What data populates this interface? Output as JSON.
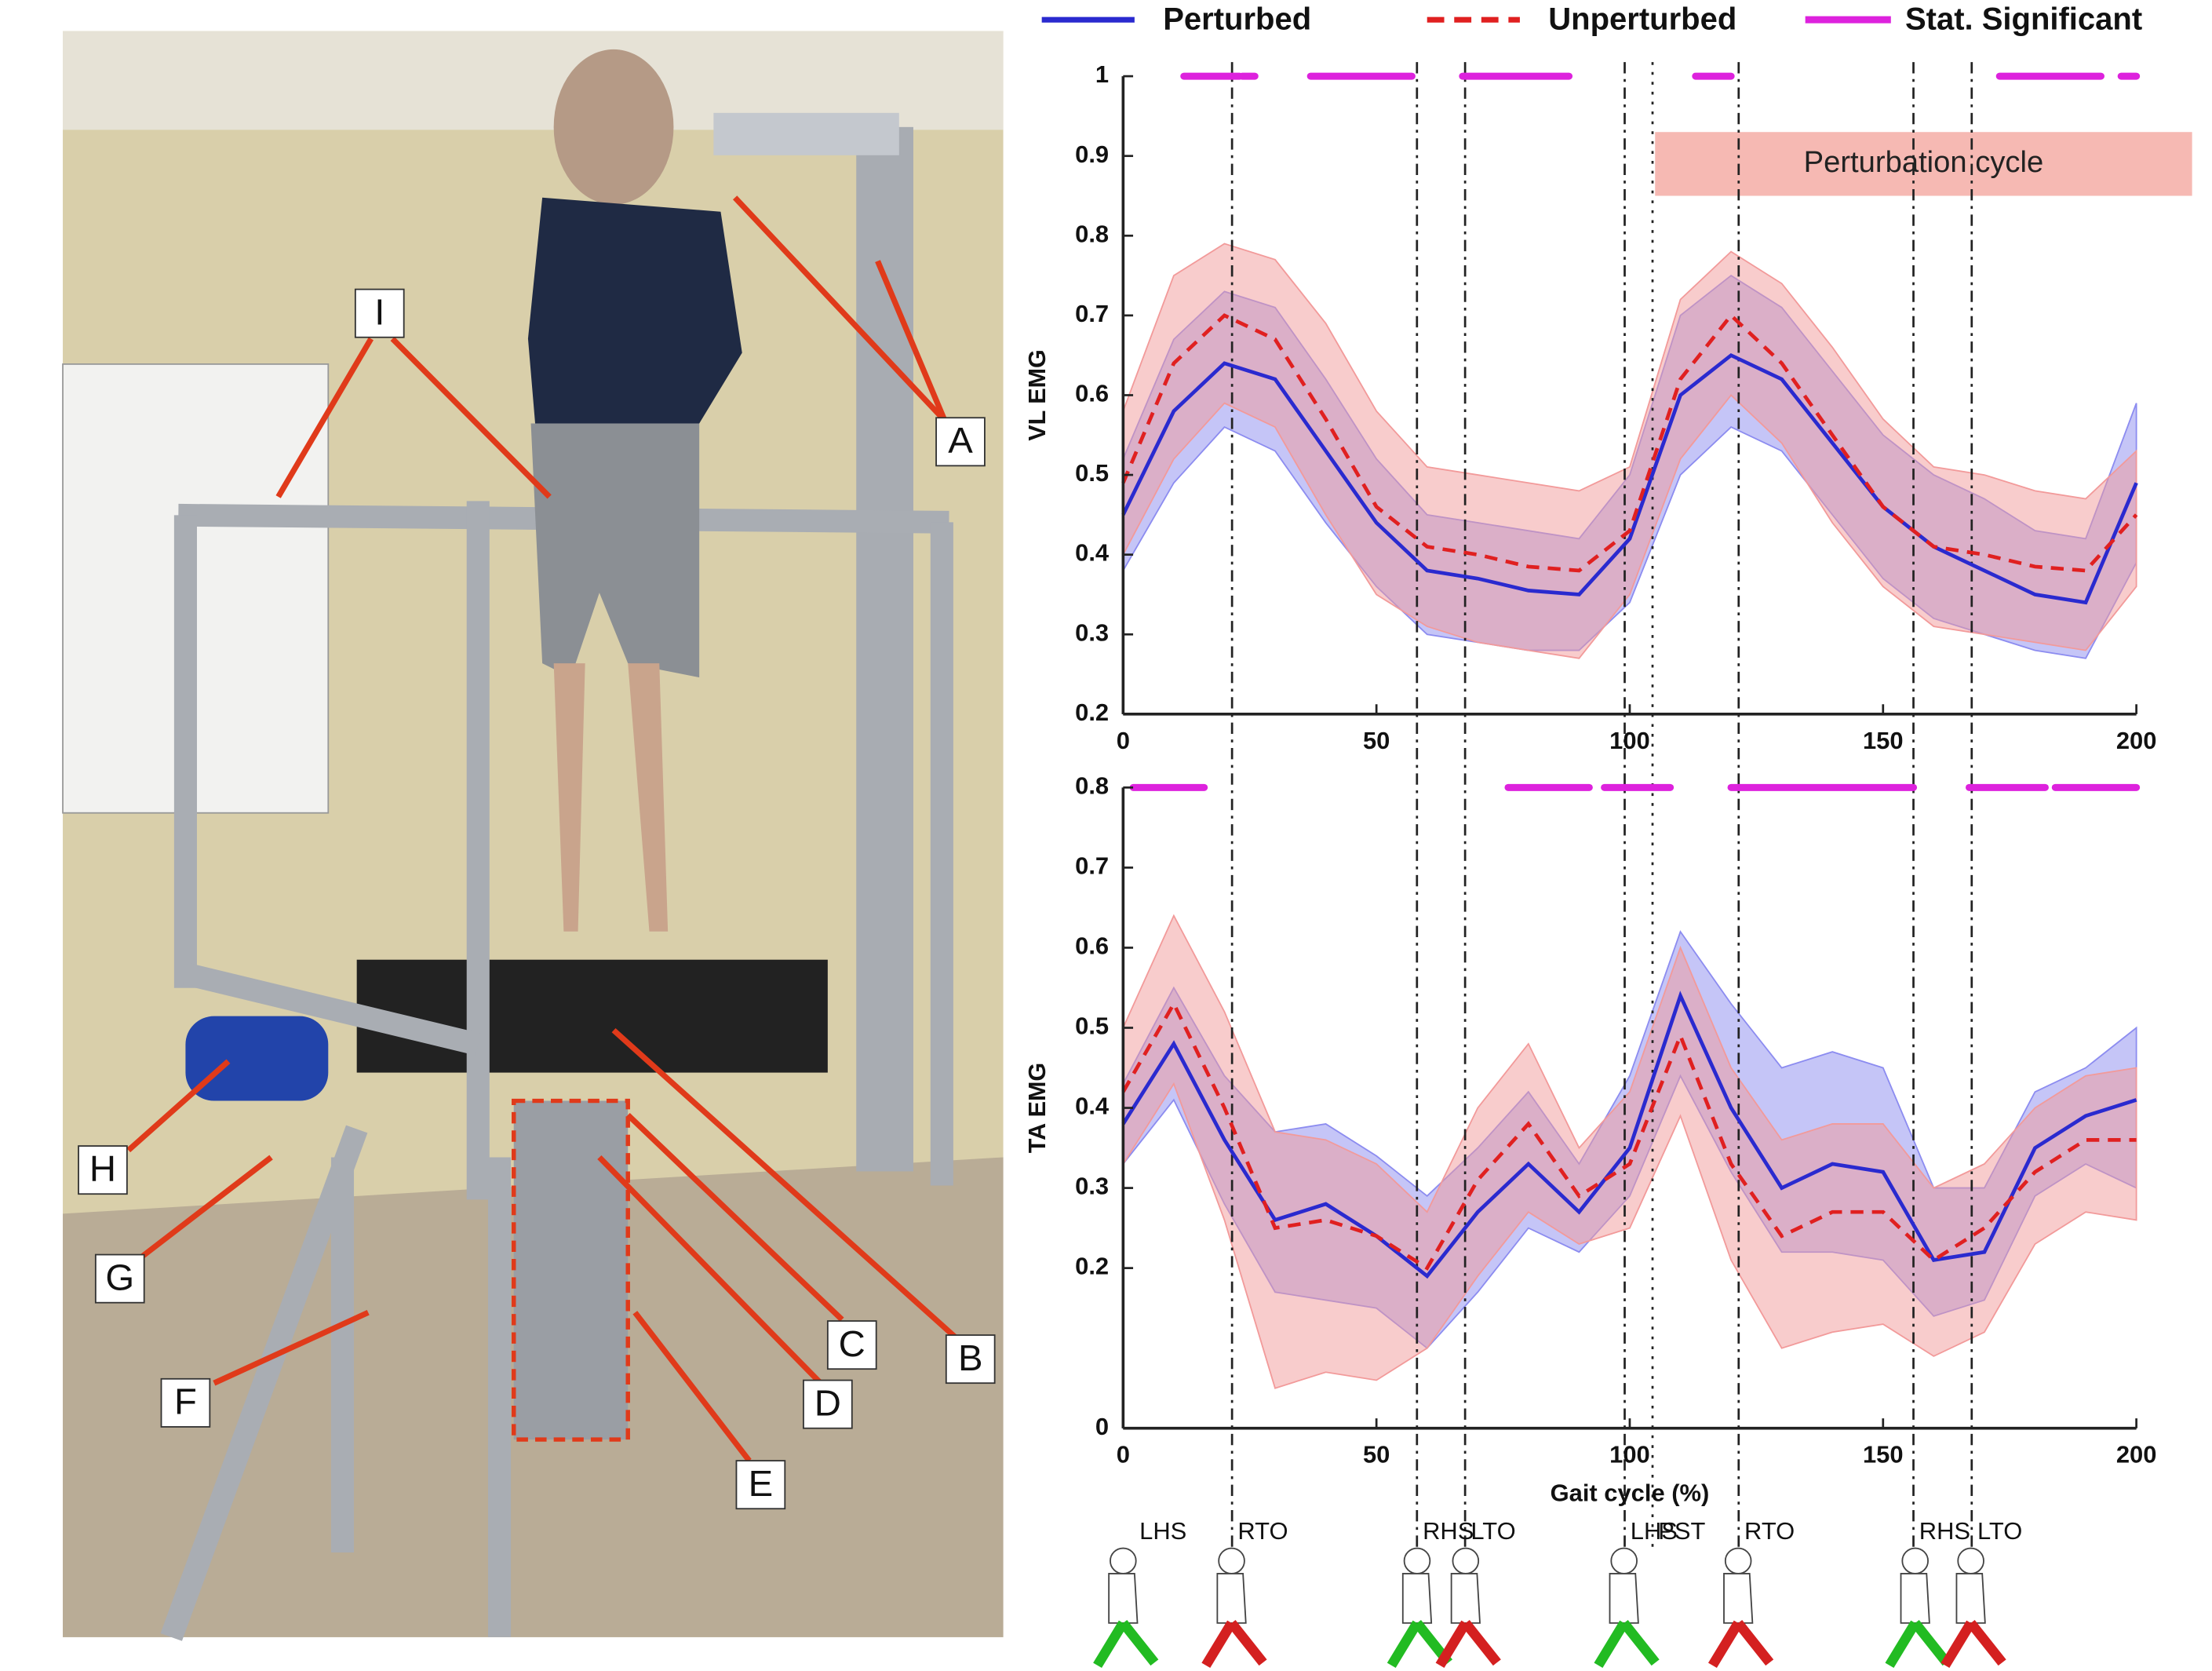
{
  "photo": {
    "labels": [
      "I",
      "A",
      "H",
      "G",
      "F",
      "C",
      "B",
      "D",
      "E"
    ]
  },
  "chart_data": [
    {
      "type": "line",
      "ylabel": "VL EMG",
      "x": [
        0,
        10,
        20,
        30,
        40,
        50,
        60,
        70,
        80,
        90,
        100,
        110,
        120,
        130,
        140,
        150,
        160,
        170,
        180,
        190,
        200
      ],
      "xlim": [
        0,
        200
      ],
      "xticks": [
        0,
        50,
        100,
        150,
        200
      ],
      "ylim": [
        0.2,
        1
      ],
      "yticks": [
        0.2,
        0.3,
        0.4,
        0.5,
        0.6,
        0.7,
        0.8,
        0.9,
        1
      ],
      "series": [
        {
          "name": "Perturbed",
          "color": "#2a2acf",
          "dash": false,
          "band_color": "#8c8cf0",
          "values": [
            0.45,
            0.58,
            0.64,
            0.62,
            0.53,
            0.44,
            0.38,
            0.37,
            0.355,
            0.35,
            0.42,
            0.6,
            0.65,
            0.62,
            0.54,
            0.46,
            0.41,
            0.38,
            0.35,
            0.34,
            0.49
          ],
          "lower": [
            0.38,
            0.49,
            0.56,
            0.53,
            0.44,
            0.36,
            0.3,
            0.29,
            0.28,
            0.28,
            0.34,
            0.5,
            0.56,
            0.53,
            0.45,
            0.37,
            0.32,
            0.3,
            0.28,
            0.27,
            0.39
          ],
          "upper": [
            0.52,
            0.67,
            0.73,
            0.71,
            0.62,
            0.52,
            0.45,
            0.44,
            0.43,
            0.42,
            0.5,
            0.7,
            0.75,
            0.71,
            0.63,
            0.55,
            0.5,
            0.47,
            0.43,
            0.42,
            0.59
          ]
        },
        {
          "name": "Unperturbed",
          "color": "#e02020",
          "dash": true,
          "band_color": "#f29a9a",
          "values": [
            0.49,
            0.64,
            0.7,
            0.67,
            0.57,
            0.46,
            0.41,
            0.4,
            0.385,
            0.38,
            0.43,
            0.62,
            0.7,
            0.64,
            0.55,
            0.46,
            0.41,
            0.4,
            0.385,
            0.38,
            0.45
          ],
          "lower": [
            0.4,
            0.52,
            0.59,
            0.56,
            0.45,
            0.35,
            0.31,
            0.29,
            0.28,
            0.27,
            0.35,
            0.52,
            0.6,
            0.54,
            0.44,
            0.36,
            0.31,
            0.3,
            0.29,
            0.28,
            0.36
          ],
          "upper": [
            0.58,
            0.75,
            0.79,
            0.77,
            0.69,
            0.58,
            0.51,
            0.5,
            0.49,
            0.48,
            0.51,
            0.72,
            0.78,
            0.74,
            0.66,
            0.57,
            0.51,
            0.5,
            0.48,
            0.47,
            0.53
          ]
        }
      ],
      "significance": {
        "name": "Stat. Significant",
        "color": "#dd22dd",
        "y": 1,
        "segments": [
          [
            12,
            23
          ],
          [
            23.5,
            26
          ],
          [
            37,
            57
          ],
          [
            67,
            88
          ],
          [
            113,
            120
          ],
          [
            173,
            193
          ],
          [
            197,
            200
          ]
        ]
      },
      "vlines": [
        {
          "x": 21.5,
          "style": "dashdot"
        },
        {
          "x": 58,
          "style": "dashdot"
        },
        {
          "x": 67.5,
          "style": "dashdot"
        },
        {
          "x": 99,
          "style": "dashdot"
        },
        {
          "x": 104.5,
          "style": "dotted"
        },
        {
          "x": 121.5,
          "style": "dashdot"
        },
        {
          "x": 156,
          "style": "dashdot"
        },
        {
          "x": 167.5,
          "style": "dashdot"
        }
      ],
      "annotation": {
        "text": "Perturbation cycle",
        "x": [
          105,
          211
        ],
        "y": [
          0.85,
          0.93
        ],
        "color": "#f6b9b3"
      }
    },
    {
      "type": "line",
      "ylabel": "TA EMG",
      "xlabel": "Gait cycle (%)",
      "x": [
        0,
        10,
        20,
        30,
        40,
        50,
        60,
        70,
        80,
        90,
        100,
        110,
        120,
        130,
        140,
        150,
        160,
        170,
        180,
        190,
        200
      ],
      "xlim": [
        0,
        200
      ],
      "xticks": [
        0,
        50,
        100,
        150,
        200
      ],
      "ylim": [
        0,
        0.8
      ],
      "yticks": [
        0,
        0.2,
        0.3,
        0.4,
        0.5,
        0.6,
        0.7,
        0.8
      ],
      "series": [
        {
          "color": "#2a2acf",
          "dash": false,
          "band_color": "#8c8cf0",
          "values": [
            0.38,
            0.48,
            0.36,
            0.26,
            0.28,
            0.24,
            0.19,
            0.27,
            0.33,
            0.27,
            0.35,
            0.54,
            0.4,
            0.3,
            0.33,
            0.32,
            0.21,
            0.22,
            0.35,
            0.39,
            0.41
          ],
          "lower": [
            0.33,
            0.41,
            0.28,
            0.17,
            0.16,
            0.15,
            0.1,
            0.17,
            0.25,
            0.22,
            0.29,
            0.44,
            0.32,
            0.22,
            0.22,
            0.21,
            0.14,
            0.16,
            0.29,
            0.33,
            0.3
          ],
          "upper": [
            0.43,
            0.55,
            0.44,
            0.37,
            0.38,
            0.34,
            0.29,
            0.35,
            0.42,
            0.33,
            0.44,
            0.62,
            0.53,
            0.45,
            0.47,
            0.45,
            0.3,
            0.3,
            0.42,
            0.45,
            0.5
          ]
        },
        {
          "color": "#e02020",
          "dash": true,
          "band_color": "#f29a9a",
          "values": [
            0.42,
            0.53,
            0.4,
            0.25,
            0.26,
            0.24,
            0.2,
            0.31,
            0.38,
            0.29,
            0.33,
            0.49,
            0.33,
            0.24,
            0.27,
            0.27,
            0.21,
            0.25,
            0.32,
            0.36,
            0.36
          ],
          "lower": [
            0.33,
            0.43,
            0.26,
            0.05,
            0.07,
            0.06,
            0.1,
            0.19,
            0.27,
            0.23,
            0.25,
            0.39,
            0.21,
            0.1,
            0.12,
            0.13,
            0.09,
            0.12,
            0.23,
            0.27,
            0.26
          ],
          "upper": [
            0.5,
            0.64,
            0.52,
            0.37,
            0.36,
            0.33,
            0.27,
            0.4,
            0.48,
            0.35,
            0.42,
            0.6,
            0.45,
            0.36,
            0.38,
            0.38,
            0.3,
            0.33,
            0.4,
            0.44,
            0.45
          ]
        }
      ],
      "significance": {
        "color": "#dd22dd",
        "y": 0.8,
        "segments": [
          [
            2,
            16
          ],
          [
            76,
            92
          ],
          [
            95,
            108
          ],
          [
            120,
            156
          ],
          [
            167,
            182
          ],
          [
            184,
            200
          ]
        ]
      },
      "events": [
        {
          "x": 0,
          "label": "LHS",
          "style": "none"
        },
        {
          "x": 21.5,
          "label": "RTO",
          "style": "dashdot"
        },
        {
          "x": 58,
          "label": "RHS",
          "style": "dashdot"
        },
        {
          "x": 67.5,
          "label": "LTO",
          "style": "dashdot"
        },
        {
          "x": 99,
          "label": "LHS",
          "style": "dashdot"
        },
        {
          "x": 104.5,
          "label": "PST",
          "style": "dotted"
        },
        {
          "x": 121.5,
          "label": "RTO",
          "style": "dashdot"
        },
        {
          "x": 156,
          "label": "RHS",
          "style": "dashdot"
        },
        {
          "x": 167.5,
          "label": "LTO",
          "style": "dashdot"
        }
      ]
    }
  ]
}
